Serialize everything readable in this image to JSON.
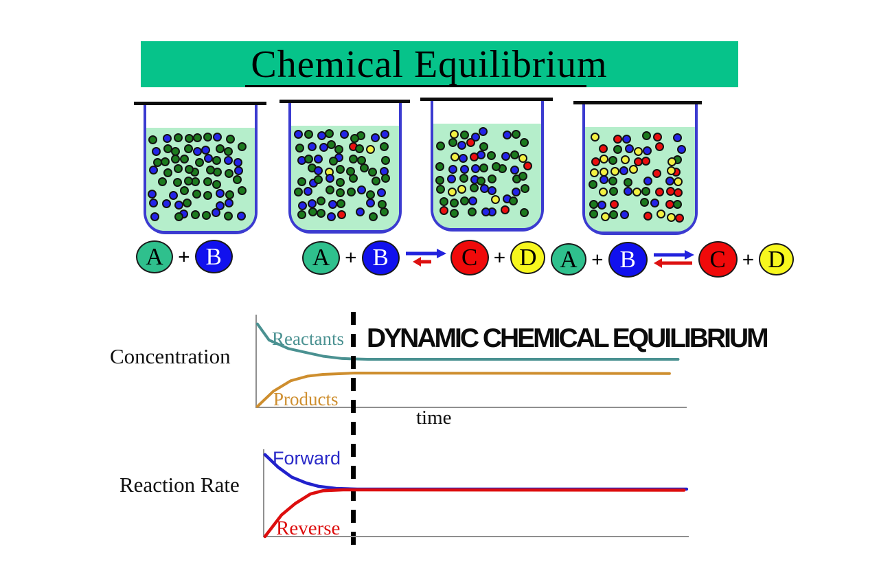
{
  "slide_title": "Chemical Equilibrium",
  "dynamic_label": "DYNAMIC CHEMICAL EQUILIBRIUM",
  "symbols": {
    "plus": "+"
  },
  "colors": {
    "banner": "#06C38A",
    "beaker_outline": "#3B3BD0",
    "liquid": "#B5EECB",
    "axis": "#8F8F8F",
    "reactants": "#4A9191",
    "products": "#CE8E2E",
    "forward": "#2A2AC8",
    "reverse": "#DD0E0E",
    "arrow_blue": "#2222DD",
    "arrow_red": "#DD1111"
  },
  "molecules": {
    "A": {
      "label": "A",
      "fill": "#2FC08D",
      "text": "#000000"
    },
    "B": {
      "label": "B",
      "fill": "#1111EE",
      "text": "#FFFFFF"
    },
    "C": {
      "label": "C",
      "fill": "#F00A0A",
      "text": "#000000"
    },
    "D": {
      "label": "D",
      "fill": "#F7F71E",
      "text": "#000000"
    }
  },
  "dot_colors": {
    "green": "#1C7A1E",
    "blue": "#2424E8",
    "red": "#EA0F0F",
    "yellow": "#F3F142"
  },
  "beakers": [
    {
      "stage": "only reactants A and B",
      "seed": 7,
      "dots": {
        "green": 42,
        "blue": 22,
        "red": 0,
        "yellow": 0
      }
    },
    {
      "stage": "reaction begins, few C and D",
      "seed": 13,
      "dots": {
        "green": 38,
        "blue": 23,
        "red": 2,
        "yellow": 2
      }
    },
    {
      "stage": "more products forming",
      "seed": 21,
      "dots": {
        "green": 28,
        "blue": 20,
        "red": 5,
        "yellow": 6
      }
    },
    {
      "stage": "dynamic equilibrium mixture",
      "seed": 42,
      "dots": {
        "green": 14,
        "blue": 13,
        "red": 16,
        "yellow": 16
      }
    }
  ],
  "chart_data": [
    {
      "type": "line",
      "title": "",
      "ylabel": "Concentration",
      "xlabel": "time",
      "x_range_note": "unlabeled time axis; values normalized 0-100",
      "grid": false,
      "series": [
        {
          "name": "Reactants",
          "color": "#4A9191",
          "width": 4,
          "points": [
            [
              0.3,
              12
            ],
            [
              3,
              29
            ],
            [
              7.5,
              38
            ],
            [
              12,
              42.5
            ],
            [
              15.5,
              46
            ],
            [
              20,
              48.5
            ],
            [
              26,
              49.3
            ],
            [
              98,
              49.3
            ]
          ]
        },
        {
          "name": "Products",
          "color": "#CE8E2E",
          "width": 4,
          "points": [
            [
              0.3,
              99
            ],
            [
              4,
              83
            ],
            [
              8,
              72
            ],
            [
              12,
              67
            ],
            [
              15.5,
              65.2
            ],
            [
              23,
              63.8
            ],
            [
              96,
              64.3
            ]
          ]
        }
      ]
    },
    {
      "type": "line",
      "title": "",
      "ylabel": "Reaction Rate",
      "xlabel": "",
      "x_range_note": "unlabeled time axis; values normalized 0-100",
      "grid": false,
      "series": [
        {
          "name": "Forward",
          "color": "#2121CC",
          "width": 4.5,
          "points": [
            [
              0.3,
              9
            ],
            [
              3.4,
              23
            ],
            [
              6.6,
              34
            ],
            [
              10,
              40.5
            ],
            [
              13,
              44.3
            ],
            [
              17,
              46.6
            ],
            [
              22,
              47.3
            ],
            [
              99.5,
              47.3
            ]
          ]
        },
        {
          "name": "Reverse",
          "color": "#DD0E0E",
          "width": 4.5,
          "points": [
            [
              0.3,
              100
            ],
            [
              4.2,
              76
            ],
            [
              7.4,
              63.4
            ],
            [
              11,
              52.7
            ],
            [
              14,
              49
            ],
            [
              18.7,
              48.1
            ],
            [
              98.9,
              48.5
            ]
          ]
        }
      ]
    }
  ]
}
